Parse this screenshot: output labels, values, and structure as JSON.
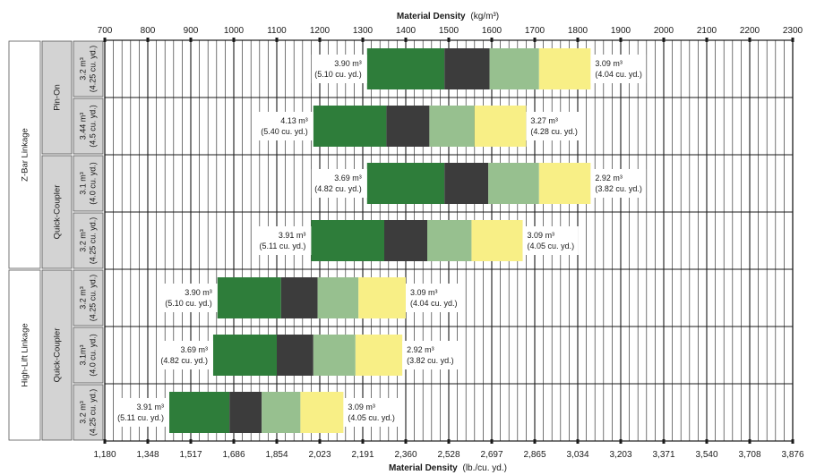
{
  "chart_data": {
    "type": "bar",
    "subtype": "floating-range",
    "x_top": {
      "title_bold": "Material Density",
      "title_unit": "(kg/m³)",
      "range": [
        700,
        2300
      ],
      "ticks": [
        "700",
        "800",
        "900",
        "1000",
        "1100",
        "1200",
        "1300",
        "1400",
        "1500",
        "1600",
        "1700",
        "1800",
        "1900",
        "2000",
        "2100",
        "2200",
        "2300"
      ]
    },
    "x_bottom": {
      "title_bold": "Material Density",
      "title_unit": "(lb./cu. yd.)",
      "ticks": [
        "1,180",
        "1,348",
        "1,517",
        "1,686",
        "1,854",
        "2,023",
        "2,191",
        "2,360",
        "2,528",
        "2,697",
        "2,865",
        "3,034",
        "3,203",
        "3,371",
        "3,540",
        "3,708",
        "3,876"
      ]
    },
    "grid": true,
    "segment_colors": [
      "#2e7d3a",
      "#3c3c3c",
      "#97c08f",
      "#f8ef86"
    ],
    "linkage_groups": [
      {
        "label": "Z-Bar Linkage",
        "rows": [
          0,
          3
        ]
      },
      {
        "label": "High-Lift Linkage",
        "rows": [
          4,
          6
        ]
      }
    ],
    "coupler_groups": [
      {
        "label": "Pin-On",
        "rows": [
          0,
          1
        ]
      },
      {
        "label": "Quick-Coupler",
        "rows": [
          2,
          3
        ]
      },
      {
        "label": "Quick-Coupler",
        "rows": [
          4,
          6
        ]
      }
    ],
    "rows": [
      {
        "cap_main": "3.2 m³",
        "cap_sub": "(4.25 cu. yd.)",
        "breaks": [
          1310,
          1490,
          1595,
          1710,
          1830
        ],
        "left_main": "3.90 m³",
        "left_sub": "(5.10 cu. yd.)",
        "right_main": "3.09 m³",
        "right_sub": "(4.04 cu. yd.)"
      },
      {
        "cap_main": "3.44 m³",
        "cap_sub": "(4.5 cu. yd.)",
        "breaks": [
          1185,
          1355,
          1455,
          1560,
          1680
        ],
        "left_main": "4.13 m³",
        "left_sub": "(5.40 cu. yd.)",
        "right_main": "3.27 m³",
        "right_sub": "(4.28 cu. yd.)"
      },
      {
        "cap_main": "3.1 m³",
        "cap_sub": "(4.0 cu. yd.)",
        "breaks": [
          1310,
          1490,
          1592,
          1710,
          1830
        ],
        "left_main": "3.69 m³",
        "left_sub": "(4.82 cu. yd.)",
        "right_main": "2.92 m³",
        "right_sub": "(3.82 cu. yd.)"
      },
      {
        "cap_main": "3.2 m³",
        "cap_sub": "(4.25 cu. yd.)",
        "breaks": [
          1180,
          1350,
          1450,
          1553,
          1672
        ],
        "left_main": "3.91 m³",
        "left_sub": "(5.11 cu. yd.)",
        "right_main": "3.09 m³",
        "right_sub": "(4.05 cu. yd.)"
      },
      {
        "cap_main": "3.2 m³",
        "cap_sub": "(4.25 cu. yd.)",
        "breaks": [
          962,
          1110,
          1195,
          1290,
          1400
        ],
        "left_main": "3.90 m³",
        "left_sub": "(5.10 cu. yd.)",
        "right_main": "3.09 m³",
        "right_sub": "(4.04 cu. yd.)"
      },
      {
        "cap_main": "3.1m³",
        "cap_sub": "(4.0 cu. yd.)",
        "breaks": [
          952,
          1100,
          1185,
          1283,
          1392
        ],
        "left_main": "3.69 m³",
        "left_sub": "(4.82 cu. yd.)",
        "right_main": "2.92 m³",
        "right_sub": "(3.82 cu. yd.)"
      },
      {
        "cap_main": "3.2 m³",
        "cap_sub": "(4.25 cu. yd.)",
        "breaks": [
          850,
          990,
          1065,
          1155,
          1255
        ],
        "left_main": "3.91 m³",
        "left_sub": "(5.11 cu. yd.)",
        "right_main": "3.09 m³",
        "right_sub": "(4.05 cu. yd.)"
      }
    ]
  }
}
